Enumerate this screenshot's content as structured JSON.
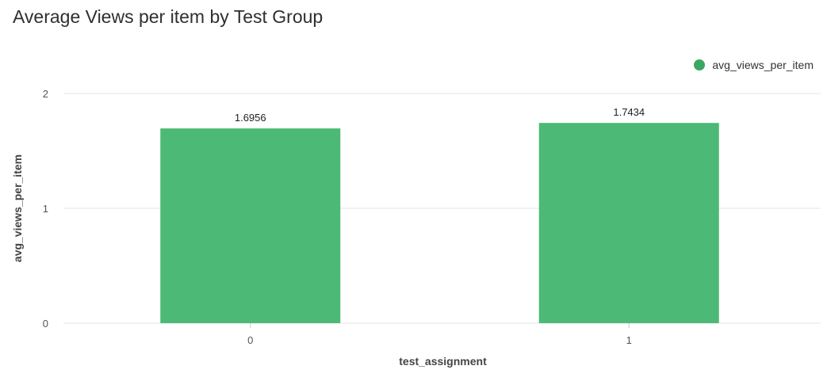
{
  "chart_data": {
    "type": "bar",
    "title": "Average Views per item by Test Group",
    "xlabel": "test_assignment",
    "ylabel": "avg_views_per_item",
    "categories": [
      "0",
      "1"
    ],
    "series": [
      {
        "name": "avg_views_per_item",
        "values": [
          1.6956,
          1.7434
        ],
        "value_labels": [
          "1.6956",
          "1.7434"
        ],
        "color": "#4cb976"
      }
    ],
    "ylim": [
      0,
      2
    ],
    "yticks": [
      0,
      1,
      2
    ],
    "ytick_labels": [
      "0",
      "1",
      "2"
    ],
    "grid": true,
    "legend_position": "top-right"
  },
  "colors": {
    "bar": "#4cb976",
    "legend_dot": "#3aa862",
    "grid": "#e6e6e6"
  }
}
